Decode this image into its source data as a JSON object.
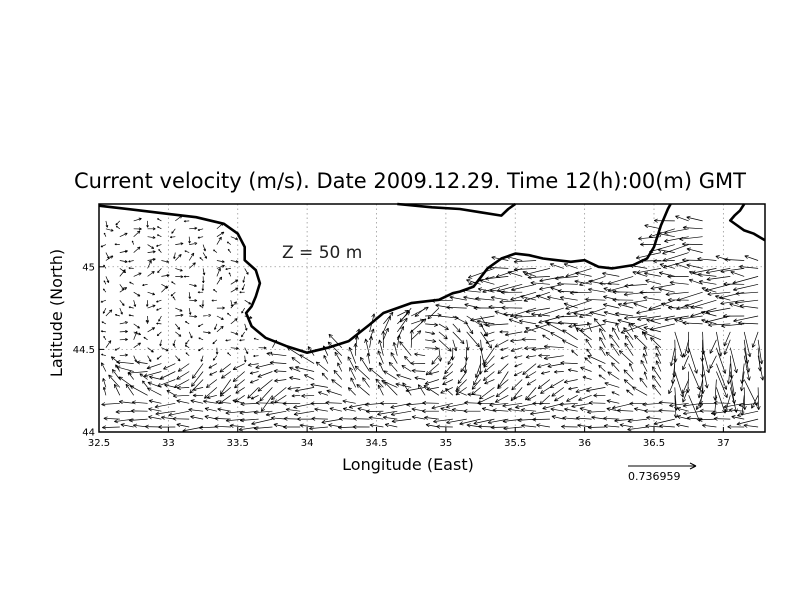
{
  "figure": {
    "title": "Current velocity (m/s). Date 2009.12.29. Time 12(h):00(m) GMT",
    "depth_label": "Z = 50 m",
    "xlabel": "Longitude (East)",
    "ylabel": "Latitude (North)",
    "scale_value": "0.736959"
  },
  "chart_data": {
    "type": "vector-field",
    "xlim": [
      32.5,
      37.3
    ],
    "ylim": [
      44.0,
      45.38
    ],
    "x_ticks": [
      {
        "value": 32.5,
        "label": "32.5"
      },
      {
        "value": 33,
        "label": "33"
      },
      {
        "value": 33.5,
        "label": "33.5"
      },
      {
        "value": 34,
        "label": "34"
      },
      {
        "value": 34.5,
        "label": "34.5"
      },
      {
        "value": 35,
        "label": "35"
      },
      {
        "value": 35.5,
        "label": "35.5"
      },
      {
        "value": 36,
        "label": "36"
      },
      {
        "value": 36.5,
        "label": "36.5"
      },
      {
        "value": 37,
        "label": "37"
      }
    ],
    "y_ticks": [
      {
        "value": 44,
        "label": "44"
      },
      {
        "value": 44.5,
        "label": "44.5"
      },
      {
        "value": 45,
        "label": "45"
      }
    ],
    "grid": true,
    "reference_vector": 0.736959,
    "coastline_north": [
      [
        32.5,
        45.37
      ],
      [
        32.6,
        45.36
      ],
      [
        32.8,
        45.34
      ],
      [
        33.0,
        45.32
      ],
      [
        33.2,
        45.3
      ],
      [
        33.4,
        45.26
      ],
      [
        33.5,
        45.2
      ],
      [
        33.55,
        45.12
      ],
      [
        33.55,
        45.04
      ],
      [
        33.63,
        44.98
      ],
      [
        33.66,
        44.9
      ],
      [
        33.63,
        44.82
      ],
      [
        33.6,
        44.76
      ],
      [
        33.56,
        44.72
      ],
      [
        33.6,
        44.64
      ],
      [
        33.7,
        44.57
      ],
      [
        33.85,
        44.52
      ],
      [
        34.0,
        44.48
      ],
      [
        34.15,
        44.51
      ],
      [
        34.3,
        44.55
      ],
      [
        34.45,
        44.65
      ],
      [
        34.55,
        44.72
      ],
      [
        34.75,
        44.78
      ],
      [
        34.95,
        44.8
      ],
      [
        35.05,
        44.84
      ],
      [
        35.1,
        44.85
      ],
      [
        35.2,
        44.88
      ],
      [
        35.3,
        44.99
      ],
      [
        35.4,
        45.05
      ],
      [
        35.5,
        45.08
      ],
      [
        35.6,
        45.07
      ],
      [
        35.7,
        45.05
      ],
      [
        35.8,
        45.04
      ],
      [
        35.9,
        45.03
      ],
      [
        36.0,
        45.04
      ],
      [
        36.1,
        45.0
      ],
      [
        36.2,
        44.99
      ],
      [
        36.35,
        45.01
      ],
      [
        36.45,
        45.05
      ],
      [
        36.5,
        45.12
      ],
      [
        36.55,
        45.25
      ],
      [
        36.6,
        45.35
      ],
      [
        36.62,
        45.38
      ]
    ],
    "coastline_east": [
      [
        37.3,
        45.16
      ],
      [
        37.22,
        45.2
      ],
      [
        37.15,
        45.22
      ],
      [
        37.1,
        45.25
      ],
      [
        37.05,
        45.28
      ],
      [
        37.08,
        45.31
      ],
      [
        37.12,
        45.34
      ],
      [
        37.15,
        45.38
      ]
    ],
    "coastline_north_small": [
      [
        34.65,
        45.38
      ],
      [
        34.9,
        45.36
      ],
      [
        35.1,
        45.35
      ],
      [
        35.25,
        45.33
      ],
      [
        35.4,
        45.31
      ],
      [
        35.45,
        45.35
      ],
      [
        35.5,
        45.38
      ]
    ]
  }
}
